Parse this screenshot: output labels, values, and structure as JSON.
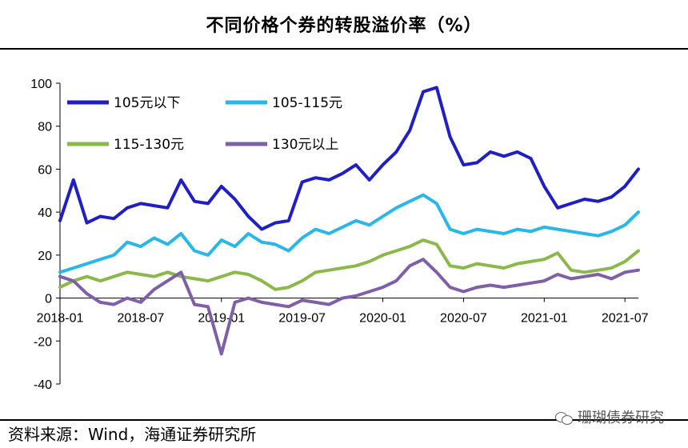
{
  "title": "不同价格个券的转股溢价率（%）",
  "source": "资料来源：Wind，海通证券研究所",
  "watermark": "珊瑚债券研究",
  "watermark_icon": "wechat-icon",
  "chart_data": {
    "type": "line",
    "title": "不同价格个券的转股溢价率（%）",
    "xlabel": "",
    "ylabel": "",
    "ylim": [
      -40,
      100
    ],
    "yticks": [
      100,
      80,
      60,
      40,
      20,
      0,
      -20,
      -40
    ],
    "x_ticks": [
      "2018-01",
      "2018-07",
      "2019-01",
      "2019-07",
      "2020-01",
      "2020-07",
      "2021-01",
      "2021-07"
    ],
    "xlim": [
      "2018-01",
      "2021-08"
    ],
    "grid": false,
    "legend": "top-left",
    "x": [
      "2018-01",
      "2018-02",
      "2018-03",
      "2018-04",
      "2018-05",
      "2018-06",
      "2018-07",
      "2018-08",
      "2018-09",
      "2018-10",
      "2018-11",
      "2018-12",
      "2019-01",
      "2019-02",
      "2019-03",
      "2019-04",
      "2019-05",
      "2019-06",
      "2019-07",
      "2019-08",
      "2019-09",
      "2019-10",
      "2019-11",
      "2019-12",
      "2020-01",
      "2020-02",
      "2020-03",
      "2020-04",
      "2020-05",
      "2020-06",
      "2020-07",
      "2020-08",
      "2020-09",
      "2020-10",
      "2020-11",
      "2020-12",
      "2021-01",
      "2021-02",
      "2021-03",
      "2021-04",
      "2021-05",
      "2021-06",
      "2021-07",
      "2021-08"
    ],
    "series": [
      {
        "name": "105元以下",
        "color": "#1f1fc4",
        "values": [
          36,
          55,
          35,
          38,
          37,
          42,
          44,
          43,
          42,
          55,
          45,
          44,
          52,
          46,
          38,
          32,
          35,
          36,
          54,
          56,
          55,
          58,
          62,
          55,
          62,
          68,
          78,
          96,
          98,
          75,
          62,
          63,
          68,
          66,
          68,
          65,
          52,
          42,
          44,
          46,
          45,
          47,
          52,
          60
        ]
      },
      {
        "name": "105-115元",
        "color": "#29b6e8",
        "values": [
          12,
          14,
          16,
          18,
          20,
          26,
          24,
          28,
          25,
          30,
          22,
          20,
          27,
          24,
          30,
          26,
          25,
          22,
          28,
          32,
          30,
          33,
          36,
          34,
          38,
          42,
          45,
          48,
          44,
          32,
          30,
          32,
          31,
          30,
          32,
          31,
          33,
          32,
          31,
          30,
          29,
          31,
          34,
          40
        ]
      },
      {
        "name": "115-130元",
        "color": "#8ab84a",
        "values": [
          5,
          8,
          10,
          8,
          10,
          12,
          11,
          10,
          12,
          10,
          9,
          8,
          10,
          12,
          11,
          8,
          4,
          5,
          8,
          12,
          13,
          14,
          15,
          17,
          20,
          22,
          24,
          27,
          25,
          15,
          14,
          16,
          15,
          14,
          16,
          17,
          18,
          21,
          13,
          12,
          13,
          14,
          17,
          22
        ]
      },
      {
        "name": "130元以上",
        "color": "#7e5fa8",
        "values": [
          10,
          8,
          2,
          -2,
          -3,
          0,
          -2,
          4,
          8,
          12,
          -3,
          -4,
          -26,
          -2,
          0,
          -2,
          -3,
          -4,
          -1,
          -2,
          -3,
          0,
          1,
          3,
          5,
          8,
          15,
          18,
          12,
          5,
          3,
          5,
          6,
          5,
          6,
          7,
          8,
          11,
          9,
          10,
          11,
          9,
          12,
          13
        ]
      }
    ]
  }
}
